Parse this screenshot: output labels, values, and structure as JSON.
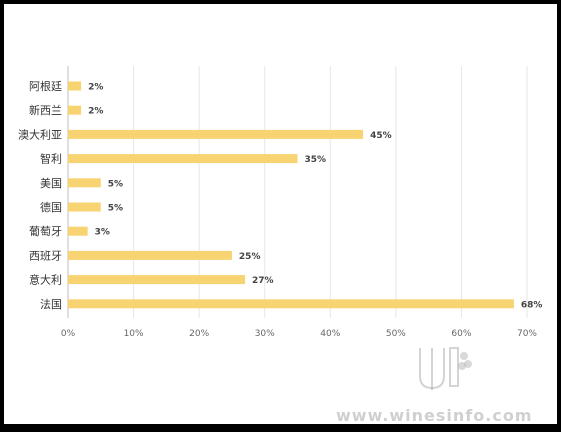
{
  "chart_data": {
    "type": "bar",
    "orientation": "horizontal",
    "categories": [
      "阿根廷",
      "新西兰",
      "澳大利亚",
      "智利",
      "美国",
      "德国",
      "葡萄牙",
      "西班牙",
      "意大利",
      "法国"
    ],
    "values": [
      2,
      2,
      45,
      35,
      5,
      5,
      3,
      25,
      27,
      68
    ],
    "value_labels": [
      "2%",
      "2%",
      "45%",
      "35%",
      "5%",
      "5%",
      "3%",
      "25%",
      "27%",
      "68%"
    ],
    "xlim": [
      0,
      70
    ],
    "xticks": [
      "0%",
      "10%",
      "20%",
      "30%",
      "40%",
      "50%",
      "60%",
      "70%"
    ],
    "grid": true,
    "legend": "none",
    "title": "",
    "xlabel": "",
    "ylabel": ""
  },
  "colors": {
    "bar": "#f8d372",
    "grid": "#e6e6e6",
    "axis": "#bfbfbf"
  },
  "watermark": {
    "text": "www.winesinfo.com"
  }
}
